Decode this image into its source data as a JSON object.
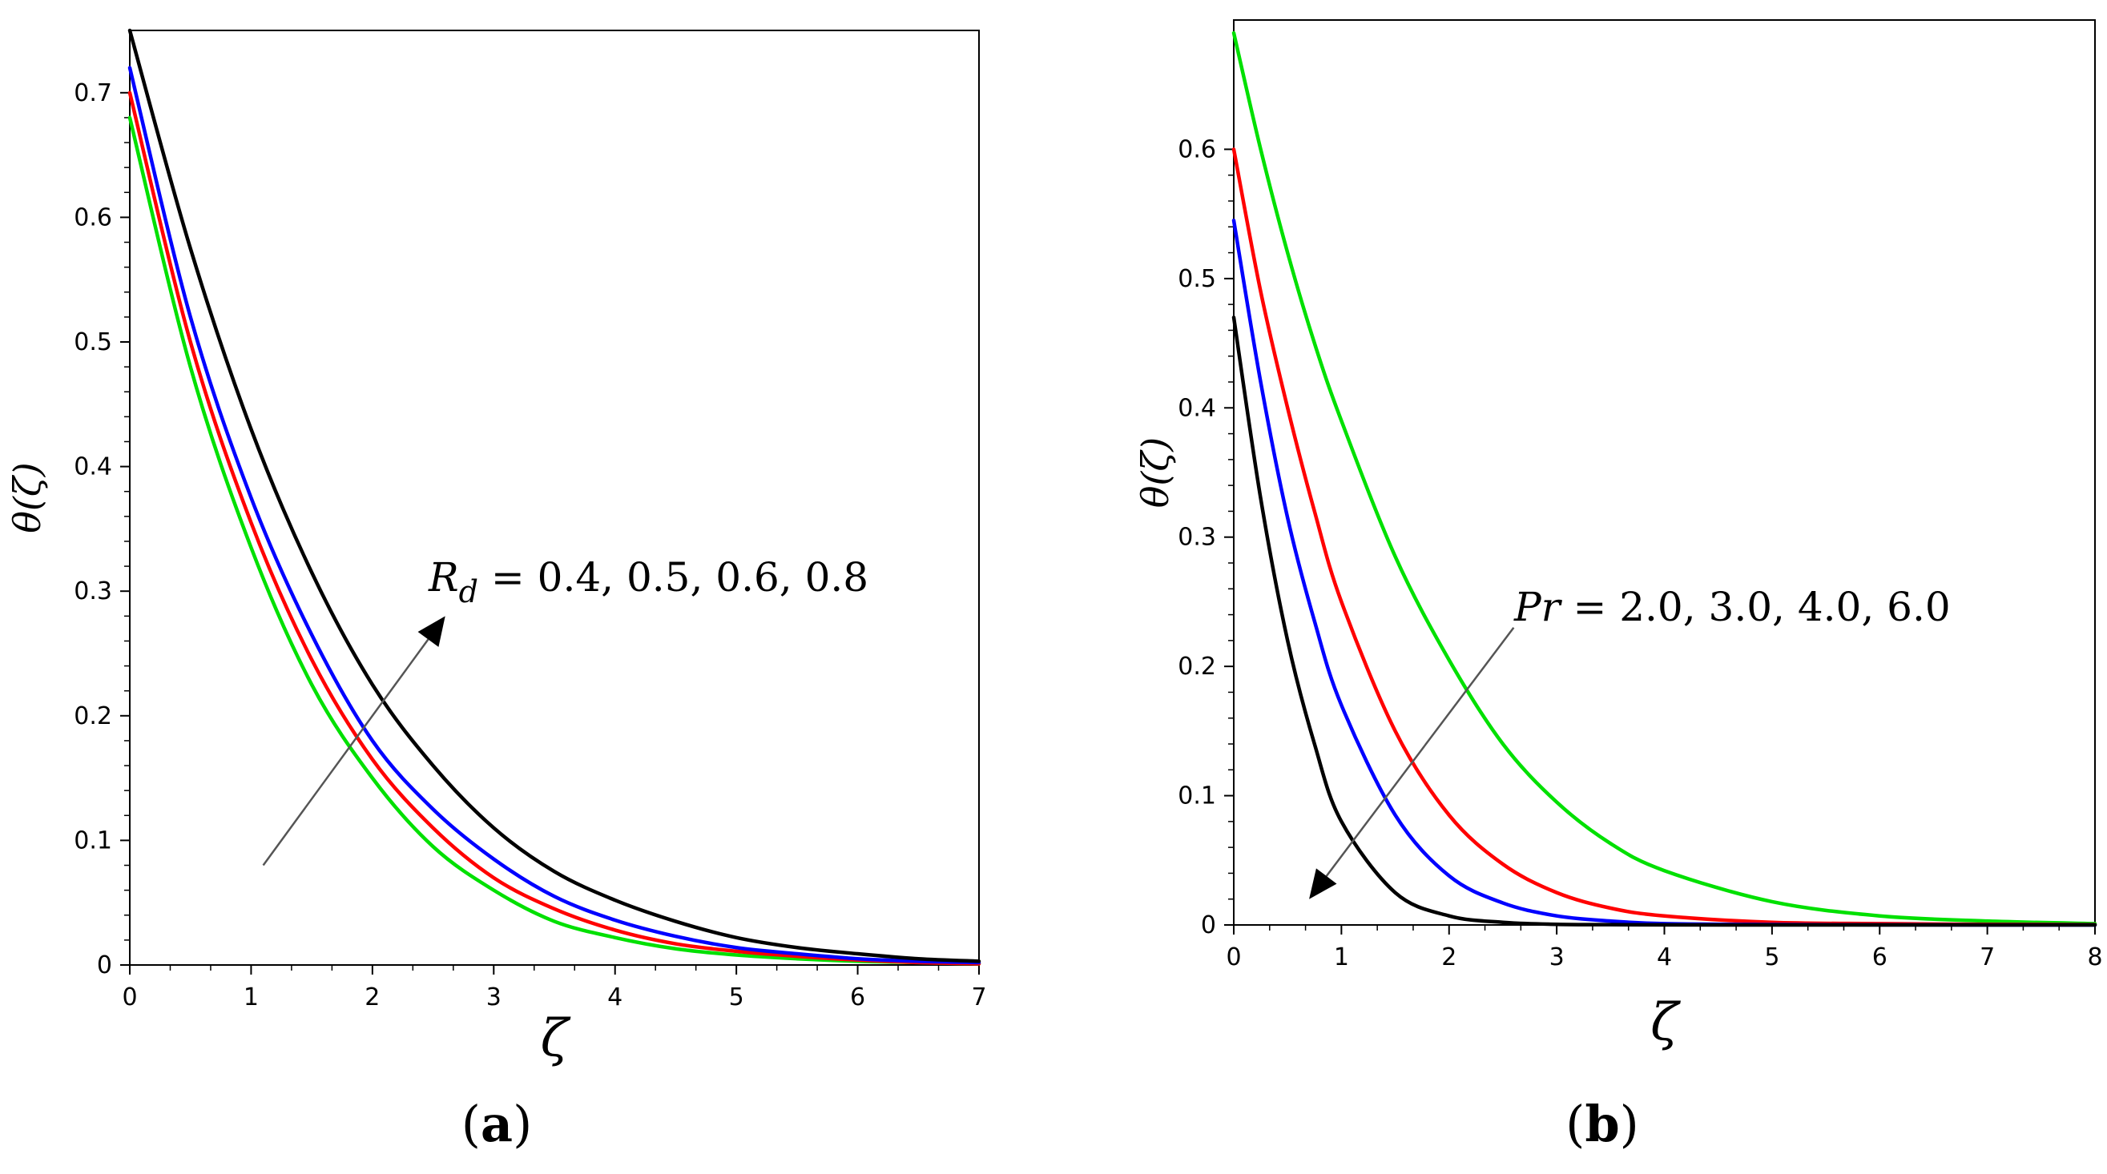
{
  "chart_data": [
    {
      "id": "a",
      "type": "line",
      "caption": "a",
      "xlabel": "ζ",
      "ylabel": "θ(ζ)",
      "xlim": [
        0,
        7
      ],
      "ylim": [
        0,
        0.75
      ],
      "xticks": [
        0,
        1,
        2,
        3,
        4,
        5,
        6,
        7
      ],
      "yticks": [
        0,
        0.1,
        0.2,
        0.3,
        0.4,
        0.5,
        0.6,
        0.7
      ],
      "annotation": {
        "variable": "R",
        "subscript": "d",
        "values_text": " = 0.4, 0.5, 0.6, 0.8",
        "arrow": {
          "from": [
            1.1,
            0.08
          ],
          "to": [
            2.6,
            0.28
          ]
        }
      },
      "x": [
        0,
        0.5,
        1,
        1.5,
        2,
        2.5,
        3,
        3.5,
        4,
        4.5,
        5,
        5.5,
        6,
        6.5,
        7
      ],
      "series": [
        {
          "name": "R_d = 0.4",
          "color": "#00e000",
          "values": [
            0.68,
            0.48,
            0.335,
            0.225,
            0.15,
            0.095,
            0.06,
            0.035,
            0.022,
            0.013,
            0.008,
            0.005,
            0.003,
            0.002,
            0.001
          ]
        },
        {
          "name": "R_d = 0.5",
          "color": "#ff0000",
          "values": [
            0.7,
            0.5,
            0.355,
            0.245,
            0.165,
            0.11,
            0.07,
            0.045,
            0.028,
            0.017,
            0.011,
            0.007,
            0.004,
            0.002,
            0.001
          ]
        },
        {
          "name": "R_d = 0.6",
          "color": "#0000ff",
          "values": [
            0.72,
            0.52,
            0.375,
            0.265,
            0.18,
            0.125,
            0.085,
            0.055,
            0.036,
            0.023,
            0.014,
            0.009,
            0.005,
            0.003,
            0.002
          ]
        },
        {
          "name": "R_d = 0.8",
          "color": "#000000",
          "values": [
            0.75,
            0.575,
            0.43,
            0.315,
            0.225,
            0.16,
            0.11,
            0.075,
            0.052,
            0.035,
            0.022,
            0.014,
            0.009,
            0.005,
            0.003
          ]
        }
      ]
    },
    {
      "id": "b",
      "type": "line",
      "caption": "b",
      "xlabel": "ζ",
      "ylabel": "θ(ζ)",
      "xlim": [
        0,
        8
      ],
      "ylim": [
        0,
        0.7
      ],
      "xticks": [
        0,
        1,
        2,
        3,
        4,
        5,
        6,
        7,
        8
      ],
      "yticks": [
        0,
        0.1,
        0.2,
        0.3,
        0.4,
        0.5,
        0.6
      ],
      "annotation": {
        "variable": "Pr",
        "subscript": "",
        "values_text": " = 2.0, 3.0, 4.0, 6.0",
        "arrow": {
          "from": [
            2.6,
            0.23
          ],
          "to": [
            0.7,
            0.02
          ]
        }
      },
      "x": [
        0,
        0.25,
        0.5,
        0.75,
        1,
        1.5,
        2,
        2.5,
        3,
        3.5,
        4,
        5,
        6,
        7,
        8
      ],
      "series": [
        {
          "name": "Pr = 2.0",
          "color": "#00e000",
          "values": [
            0.69,
            0.6,
            0.52,
            0.45,
            0.39,
            0.285,
            0.205,
            0.14,
            0.095,
            0.063,
            0.042,
            0.018,
            0.007,
            0.003,
            0.001
          ]
        },
        {
          "name": "Pr = 3.0",
          "color": "#ff0000",
          "values": [
            0.6,
            0.49,
            0.4,
            0.32,
            0.25,
            0.15,
            0.085,
            0.047,
            0.025,
            0.013,
            0.007,
            0.002,
            0.001,
            0.0005,
            0.0002
          ]
        },
        {
          "name": "Pr = 4.0",
          "color": "#0000ff",
          "values": [
            0.545,
            0.42,
            0.315,
            0.235,
            0.17,
            0.085,
            0.038,
            0.017,
            0.007,
            0.003,
            0.001,
            0.0003,
            0.0001,
            0,
            0
          ]
        },
        {
          "name": "Pr = 6.0",
          "color": "#000000",
          "values": [
            0.47,
            0.33,
            0.22,
            0.14,
            0.08,
            0.025,
            0.007,
            0.002,
            0.0005,
            0.0002,
            0.0001,
            0,
            0,
            0,
            0
          ]
        }
      ]
    }
  ]
}
